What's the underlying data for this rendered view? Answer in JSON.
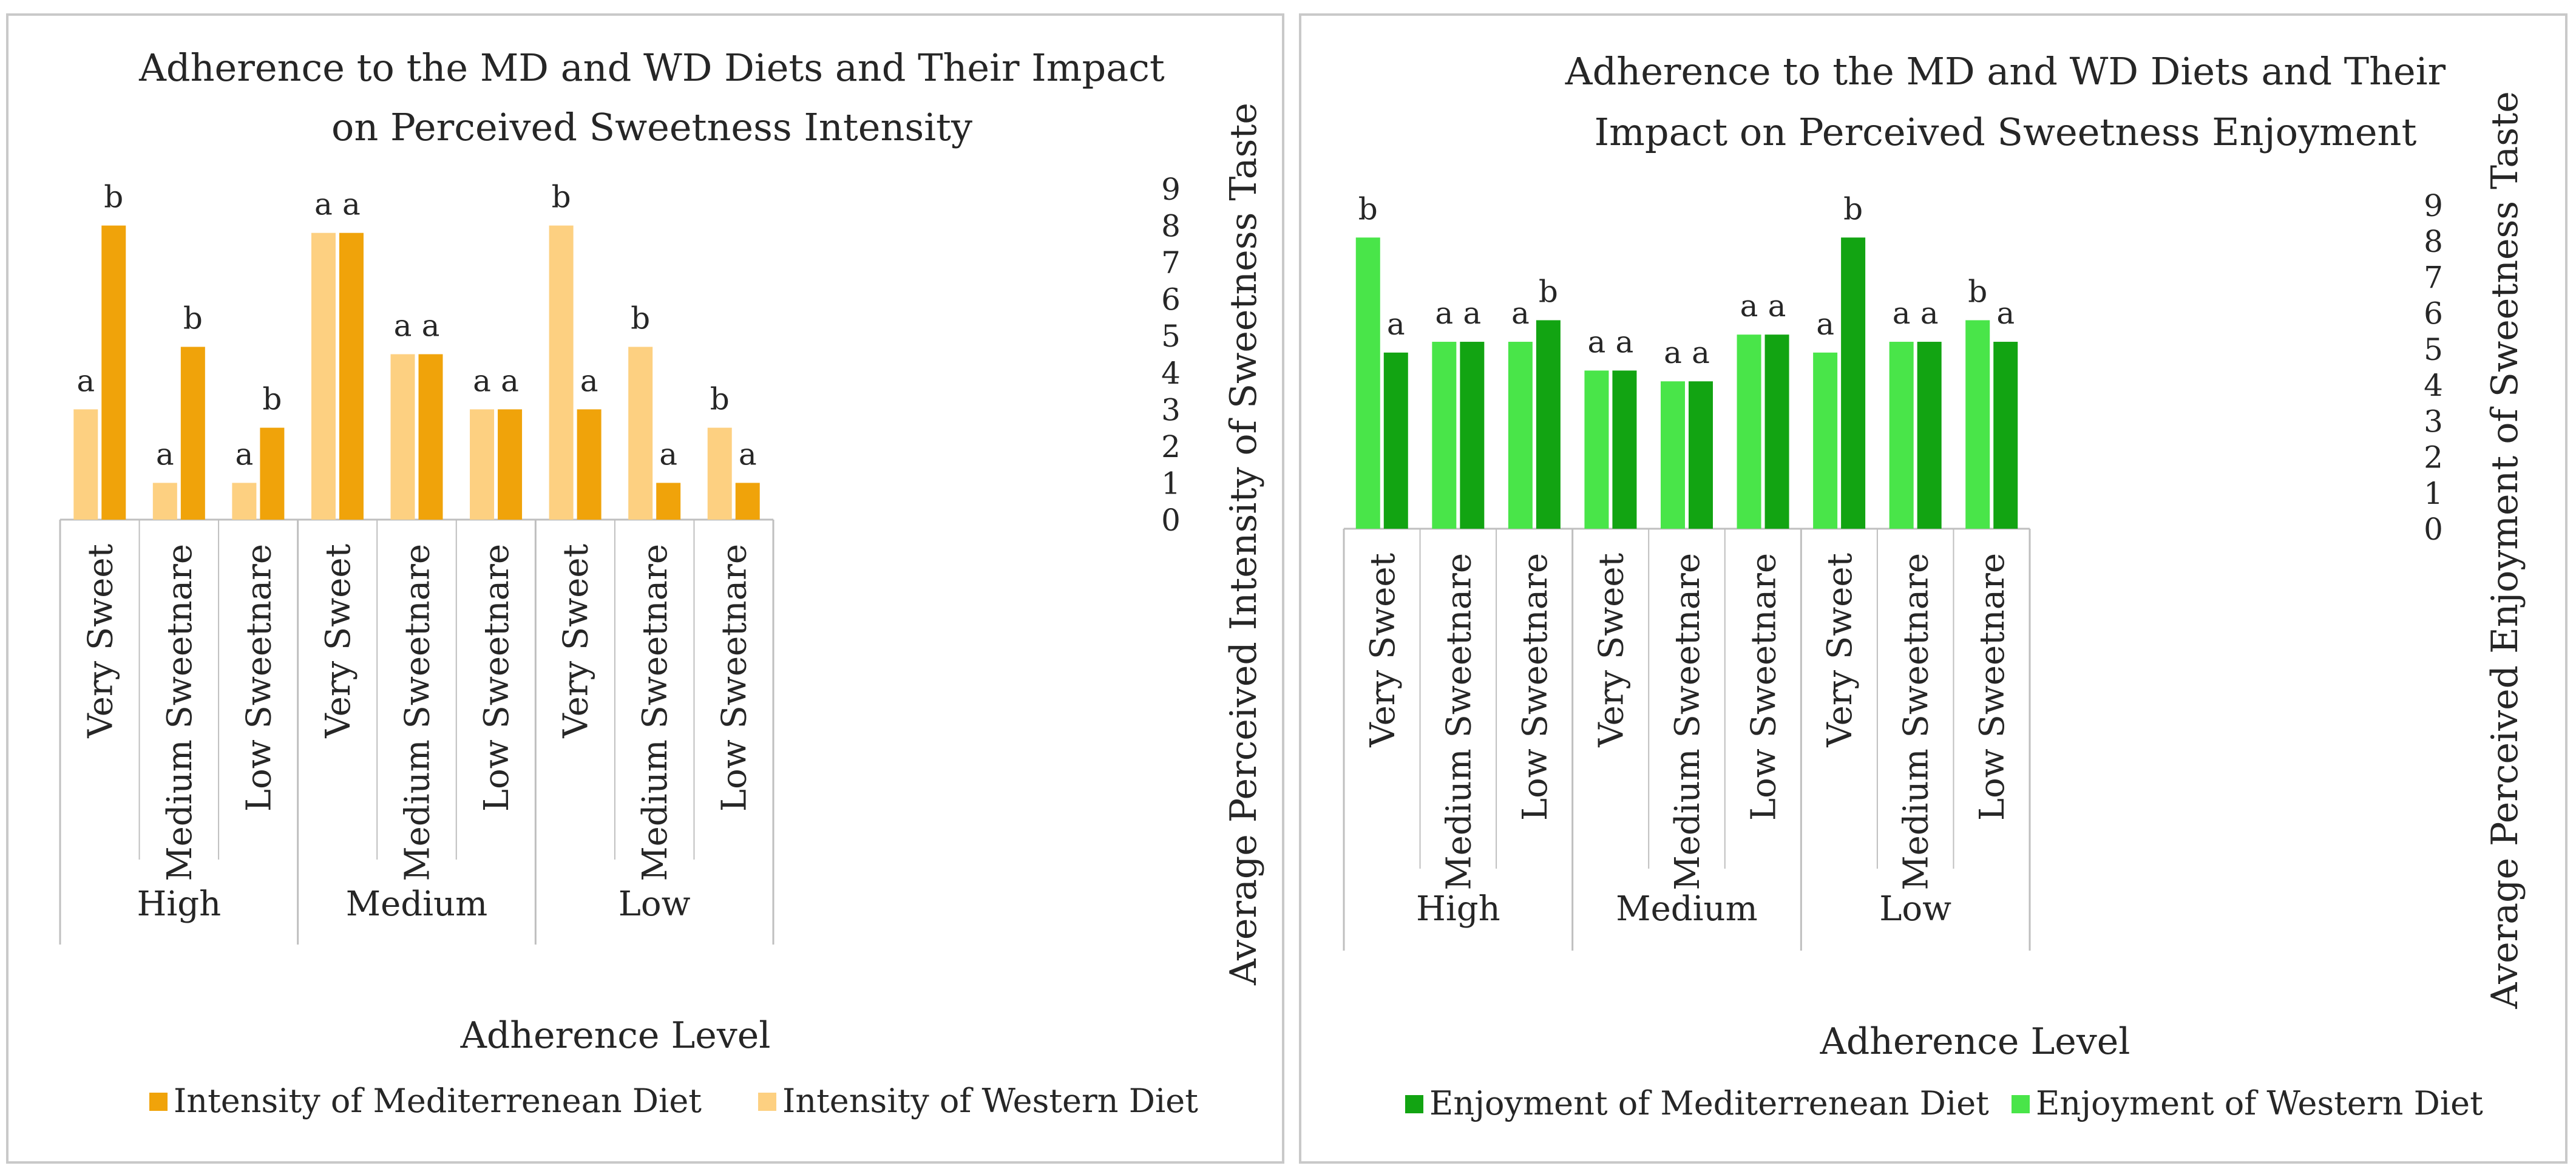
{
  "colors": {
    "intensity_md": "#f0a30a",
    "intensity_wd": "#fdd081",
    "enjoyment_md": "#12a412",
    "enjoyment_wd": "#49e549",
    "axis": "#bfbfbf"
  },
  "chart_data": [
    {
      "type": "bar",
      "title": "Adherence to the MD and WD Diets and Their Impact on Perceived Sweetness Intensity",
      "title_lines": [
        "Adherence to the MD and WD Diets and Their Impact",
        "on Perceived Sweetness Intensity"
      ],
      "xlabel": "Adherence Level",
      "ylabel": "Average Perceived Intensity  of Sweetness Taste",
      "ylim": [
        0,
        9
      ],
      "yticks": [
        "0",
        "1",
        "2",
        "3",
        "4",
        "5",
        "6",
        "7",
        "8",
        "9"
      ],
      "groups": [
        "High",
        "Medium",
        "Low"
      ],
      "categories": [
        "Very Sweet",
        "Medium Sweetnare",
        "Low Sweetnare",
        "Very Sweet",
        "Medium Sweetnare",
        "Low Sweetnare",
        "Very Sweet",
        "Medium Sweetnare",
        "Low Sweetnare"
      ],
      "series": [
        {
          "name": "Intensity of  Western Diet",
          "color_key": "intensity_wd",
          "values": [
            3.0,
            1.0,
            1.0,
            7.8,
            4.5,
            3.0,
            8.0,
            4.7,
            2.5
          ],
          "labels": [
            "a",
            "a",
            "a",
            "a",
            "a",
            "a",
            "b",
            "b",
            "b"
          ]
        },
        {
          "name": "Intensity of  Mediterrenean Diet",
          "color_key": "intensity_md",
          "values": [
            8.0,
            4.7,
            2.5,
            7.8,
            4.5,
            3.0,
            3.0,
            1.0,
            1.0
          ],
          "labels": [
            "b",
            "b",
            "b",
            "a",
            "a",
            "a",
            "a",
            "a",
            "a"
          ]
        }
      ],
      "legend": [
        "Intensity of  Mediterrenean Diet",
        "Intensity of  Western Diet"
      ]
    },
    {
      "type": "bar",
      "title": "Adherence to the MD and WD Diets and Their Impact on Perceived Sweetness Enjoyment",
      "title_lines": [
        "Adherence to the MD and WD Diets and Their",
        "Impact on Perceived Sweetness Enjoyment"
      ],
      "xlabel": "Adherence Level",
      "ylabel": "Average Perceived Enjoyment of Sweetness Taste",
      "ylim": [
        0,
        9
      ],
      "yticks": [
        "0",
        "1",
        "2",
        "3",
        "4",
        "5",
        "6",
        "7",
        "8",
        "9"
      ],
      "groups": [
        "High",
        "Medium",
        "Low"
      ],
      "categories": [
        "Very Sweet",
        "Medium Sweetnare",
        "Low Sweetnare",
        "Very Sweet",
        "Medium Sweetnare",
        "Low Sweetnare",
        "Very Sweet",
        "Medium Sweetnare",
        "Low Sweetnare"
      ],
      "series": [
        {
          "name": "Enjoyment of  Western Diet",
          "color_key": "enjoyment_wd",
          "values": [
            8.1,
            5.2,
            5.2,
            4.4,
            4.1,
            5.4,
            4.9,
            5.2,
            5.8
          ],
          "labels": [
            "b",
            "a",
            "a",
            "a",
            "a",
            "a",
            "a",
            "a",
            "b"
          ]
        },
        {
          "name": "Enjoyment of  Mediterrenean Diet",
          "color_key": "enjoyment_md",
          "values": [
            4.9,
            5.2,
            5.8,
            4.4,
            4.1,
            5.4,
            8.1,
            5.2,
            5.2
          ],
          "labels": [
            "a",
            "a",
            "b",
            "a",
            "a",
            "a",
            "b",
            "a",
            "a"
          ]
        }
      ],
      "legend": [
        "Enjoyment of  Mediterrenean Diet",
        "Enjoyment of  Western Diet"
      ]
    }
  ]
}
